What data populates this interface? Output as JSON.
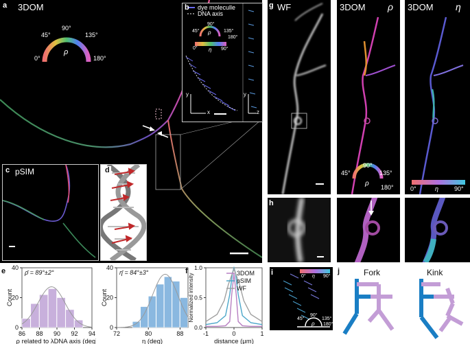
{
  "panel_a": {
    "label": "a",
    "title": "3DOM",
    "wheel_symbol": "ρ",
    "ticks": [
      "0°",
      "45°",
      "90°",
      "135°",
      "180°"
    ]
  },
  "panel_b": {
    "label": "b",
    "legend_dye": "dye moleculle",
    "legend_axis": "DNA axis",
    "wheel_symbol": "ρ",
    "bar_symbol": "η",
    "ticks": [
      "0°",
      "45°",
      "90°",
      "135°",
      "180°"
    ],
    "bar_ticks": [
      "0°",
      "90°"
    ],
    "axis_x": "x",
    "axis_y": "y",
    "axis_z": "z"
  },
  "panel_c": {
    "label": "c",
    "title": "pSIM"
  },
  "panel_d": {
    "label": "d"
  },
  "panel_e": {
    "label": "e",
    "stat": "ρ̄ = 89°±2°",
    "ylabel": "Count",
    "xlabel": "ρ related to λDNA axis (deg)"
  },
  "panel_e2": {
    "stat": "η̄ = 84°±3°",
    "ylabel": "Count",
    "xlabel": "η (deg)"
  },
  "panel_f": {
    "label": "f",
    "ylabel": "Normalized intensity",
    "xlabel": "distance (μm)",
    "legend": [
      "3DOM",
      "pSIM",
      "WF"
    ]
  },
  "panel_g": {
    "label": "g",
    "titles": [
      "WF",
      "3DOM",
      "3DOM"
    ],
    "symbols": [
      "ρ",
      "η"
    ],
    "ticks": [
      "0°",
      "45°",
      "90°",
      "135°",
      "180°"
    ],
    "bar_ticks": [
      "0°",
      "90°"
    ],
    "bar_symbol": "η"
  },
  "panel_h": {
    "label": "h"
  },
  "panel_i": {
    "label": "i",
    "bar_ticks": [
      "0°",
      "90°"
    ],
    "bar_symbol": "η",
    "ticks": [
      "45°",
      "90°",
      "135°",
      "180°"
    ],
    "wheel_symbol": "ρ"
  },
  "panel_j": {
    "label": "j",
    "fork": "Fork",
    "kink": "Kink"
  },
  "chart_data": [
    {
      "type": "bar",
      "title": "",
      "ylabel": "Count",
      "xlabel": "ρ related to λDNA axis (deg)",
      "categories": [
        86.5,
        87.5,
        88.5,
        89.5,
        90.5,
        91.5,
        92.5
      ],
      "values": [
        6,
        16,
        22,
        26,
        20,
        12,
        5
      ],
      "xlim": [
        86,
        94
      ],
      "ylim": [
        0,
        40
      ],
      "xticks": [
        86,
        88,
        90,
        92,
        94
      ],
      "yticks": [
        0,
        20,
        40
      ]
    },
    {
      "type": "bar",
      "title": "",
      "ylabel": "Count",
      "xlabel": "η (deg)",
      "categories": [
        77,
        79,
        81,
        83,
        85,
        87,
        89
      ],
      "values": [
        4,
        14,
        21,
        29,
        34,
        31,
        20
      ],
      "xlim": [
        72,
        90
      ],
      "ylim": [
        0,
        40
      ],
      "xticks": [
        72,
        80,
        88
      ],
      "yticks": [
        0,
        20,
        40
      ]
    },
    {
      "type": "line",
      "title": "",
      "ylabel": "Normalized intensity",
      "xlabel": "distance (μm)",
      "xlim": [
        -1,
        1
      ],
      "ylim": [
        0,
        1.0
      ],
      "xticks": [
        -1,
        0,
        1
      ],
      "yticks": [
        0,
        0.5,
        1.0
      ],
      "series": [
        {
          "name": "3DOM",
          "color": "#b77fc2",
          "x": [
            -1,
            -0.6,
            -0.3,
            -0.15,
            -0.08,
            0,
            0.08,
            0.15,
            0.3,
            0.6,
            1
          ],
          "y": [
            0.02,
            0.02,
            0.03,
            0.1,
            0.55,
            0.9,
            0.55,
            0.1,
            0.03,
            0.02,
            0.02
          ]
        },
        {
          "name": "pSIM",
          "color": "#4aa6c9",
          "x": [
            -1,
            -0.6,
            -0.3,
            -0.15,
            -0.05,
            0,
            0.05,
            0.15,
            0.3,
            0.6,
            1
          ],
          "y": [
            0.05,
            0.08,
            0.2,
            0.55,
            0.92,
            1.0,
            0.92,
            0.55,
            0.2,
            0.08,
            0.05
          ]
        },
        {
          "name": "WF",
          "color": "#a0a0a0",
          "x": [
            -1,
            -0.6,
            -0.35,
            -0.2,
            0,
            0.2,
            0.35,
            0.6,
            1
          ],
          "y": [
            0.1,
            0.22,
            0.45,
            0.72,
            0.98,
            0.72,
            0.45,
            0.22,
            0.1
          ]
        }
      ]
    }
  ]
}
